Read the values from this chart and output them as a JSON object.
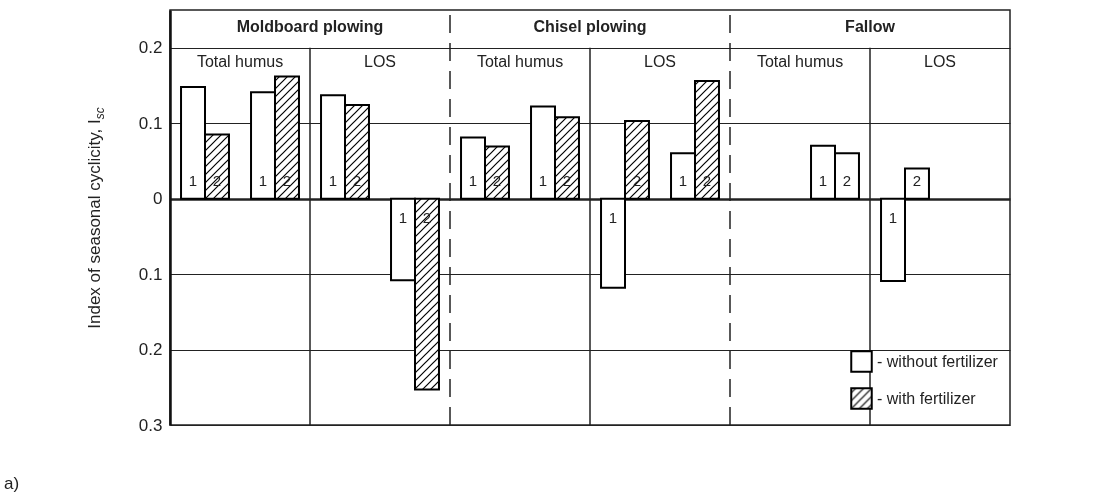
{
  "chart_data": {
    "type": "bar",
    "ylabel": "Index of seasonal cyclicity, I$_{sc}$",
    "categories": [
      null,
      null,
      null,
      null,
      null,
      null,
      null,
      null,
      null,
      null,
      null,
      null
    ],
    "series": [
      {
        "name": "- without fertilizer",
        "color": "#ffffff",
        "values": [
          0.148,
          0.141,
          0.137,
          -0.108,
          0.081,
          0.122,
          -0.118,
          0.06,
          null,
          0.07,
          -0.109,
          null
        ]
      },
      {
        "name": "- with fertilizer",
        "color": "#000000",
        "colors": [
          "#000000",
          "#000000",
          "#000000",
          "#000000",
          "#000000",
          "#000000",
          "#000000",
          "#000000",
          null,
          "#ffffff",
          "#ffffff",
          null
        ],
        "values": [
          0.085,
          0.162,
          0.124,
          -0.253,
          0.069,
          0.108,
          0.103,
          0.156,
          null,
          0.06,
          0.04,
          null
        ]
      }
    ],
    "ylim": [
      -0.3,
      0.25
    ],
    "yticks": [
      {
        "value": -0.3,
        "label": "0.3"
      },
      {
        "value": -0.2,
        "label": "0.2"
      },
      {
        "value": -0.1,
        "label": "0.1"
      },
      0,
      0.1,
      0.2
    ],
    "grid": "y",
    "legend": "bottom right",
    "annotations": [
      "Moldboard plowing",
      "Chisel plowing",
      "Fallow",
      "Total humus",
      "LOS",
      "Total humus",
      "LOS",
      "Total humus",
      "LOS",
      "1",
      "1",
      "1",
      "1",
      "1",
      "1",
      "1",
      "1",
      "1",
      "1",
      "2",
      "2",
      "2",
      "2",
      "2",
      "2",
      "2",
      "2",
      "2",
      "2",
      "a)"
    ]
  }
}
